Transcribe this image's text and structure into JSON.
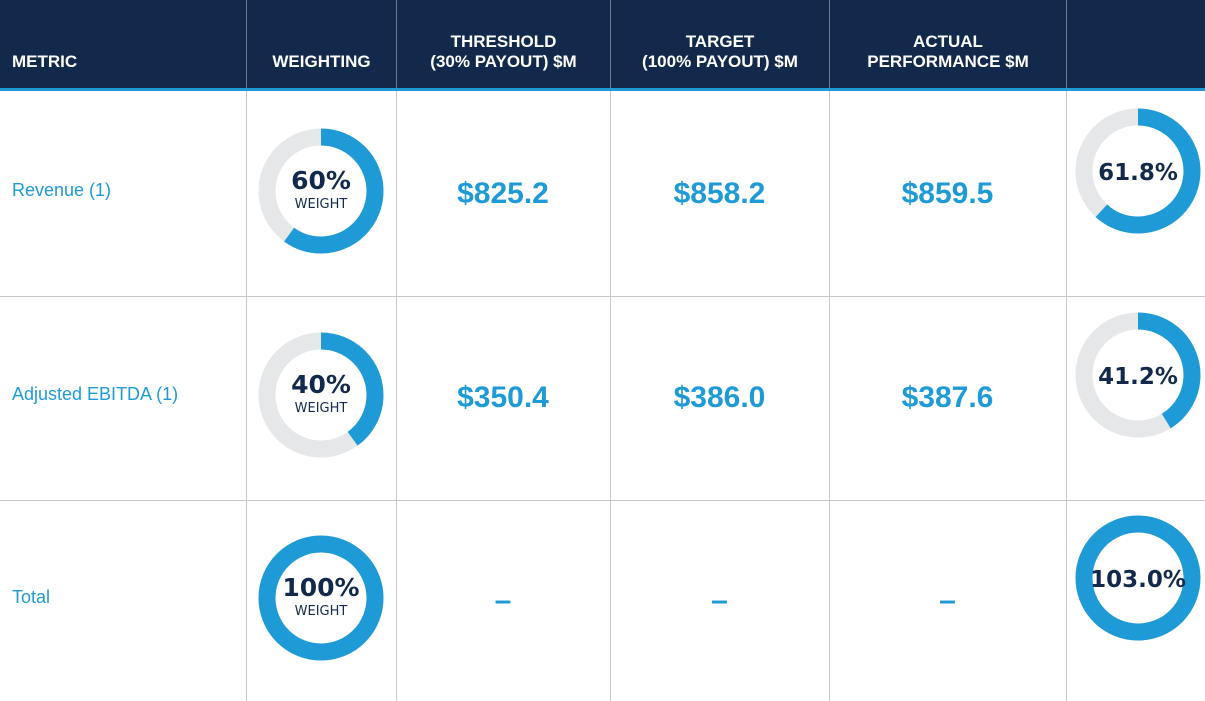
{
  "table": {
    "columns": [
      [
        "METRIC"
      ],
      [
        "WEIGHTING"
      ],
      [
        "THRESHOLD",
        "(30% PAYOUT) $M"
      ],
      [
        "TARGET",
        "(100% PAYOUT) $M"
      ],
      [
        "ACTUAL",
        "PERFORMANCE $M"
      ]
    ],
    "weight_caption": "WEIGHT",
    "rows": [
      {
        "metric": "Revenue (1)",
        "weighting": {
          "value": 60,
          "label": "60%"
        },
        "threshold": "$825.2",
        "target": "$858.2",
        "actual": "$859.5",
        "payout": {
          "value": 61.8,
          "label": "61.8%"
        }
      },
      {
        "metric": "Adjusted EBITDA (1)",
        "weighting": {
          "value": 40,
          "label": "40%"
        },
        "threshold": "$350.4",
        "target": "$386.0",
        "actual": "$387.6",
        "payout": {
          "value": 41.2,
          "label": "41.2%"
        }
      },
      {
        "metric": "Total",
        "weighting": {
          "value": 100,
          "label": "100%"
        },
        "threshold": "–",
        "target": "–",
        "actual": "–",
        "payout": {
          "value": 103.0,
          "label": "103.0%"
        }
      }
    ]
  }
}
